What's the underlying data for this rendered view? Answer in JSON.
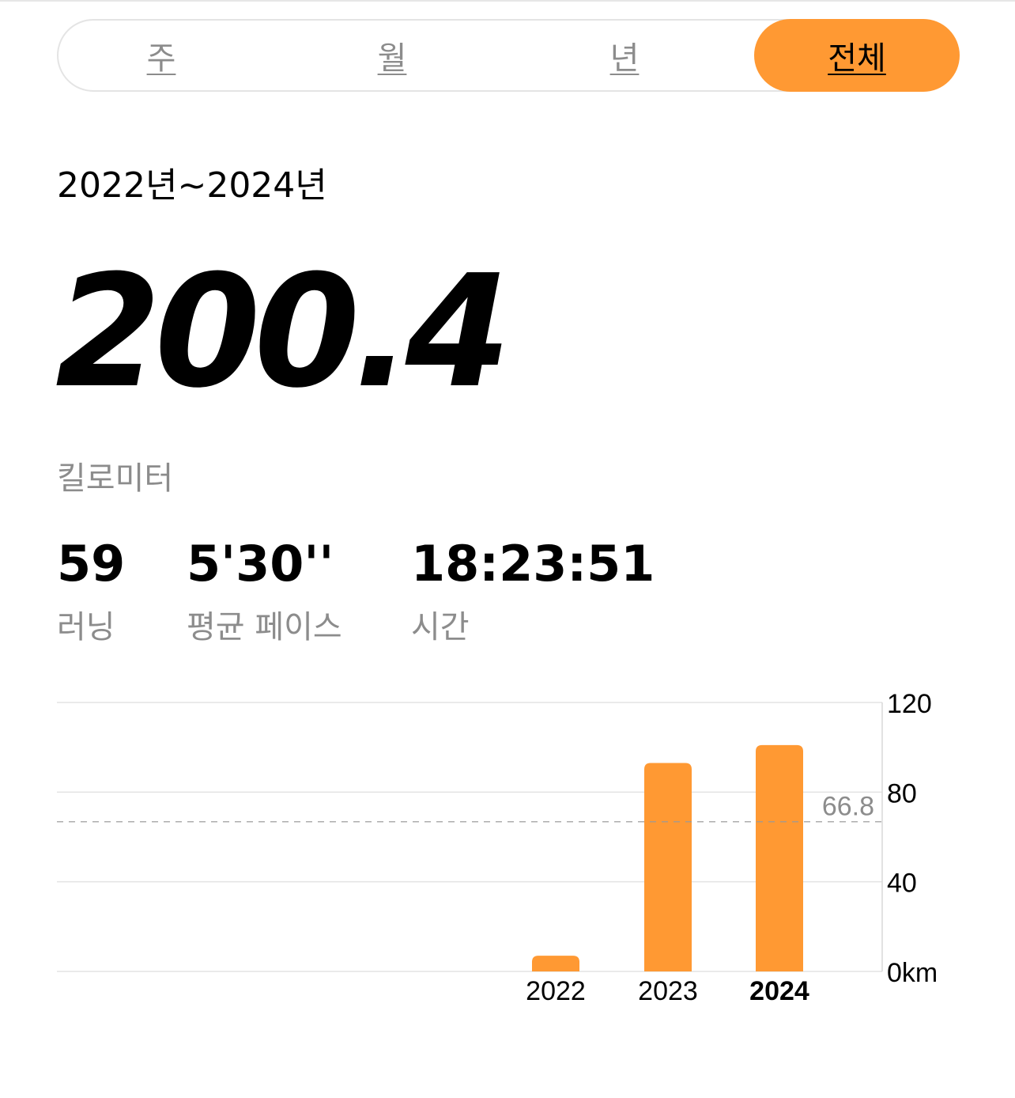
{
  "tabs": [
    {
      "label": "주",
      "active": false
    },
    {
      "label": "월",
      "active": false
    },
    {
      "label": "년",
      "active": false
    },
    {
      "label": "전체",
      "active": true
    }
  ],
  "range": "2022년~2024년",
  "total": {
    "value": "200.4",
    "unit": "킬로미터"
  },
  "stats": [
    {
      "value": "59",
      "label": "러닝"
    },
    {
      "value": "5'30''",
      "label": "평균 페이스"
    },
    {
      "value": "18:23:51",
      "label": "시간"
    }
  ],
  "colors": {
    "accent": "#ff9933",
    "muted": "#8c8c8c"
  },
  "chart_data": {
    "type": "bar",
    "categories": [
      "2022",
      "2023",
      "2024"
    ],
    "values": [
      7,
      93,
      101
    ],
    "highlight": "2024",
    "ylim": [
      0,
      120
    ],
    "yticks": [
      "120",
      "80",
      "40",
      "0km"
    ],
    "ytick_values": [
      120,
      80,
      40,
      0
    ],
    "average": {
      "value": 66.8,
      "label": "66.8"
    },
    "grid": true
  }
}
